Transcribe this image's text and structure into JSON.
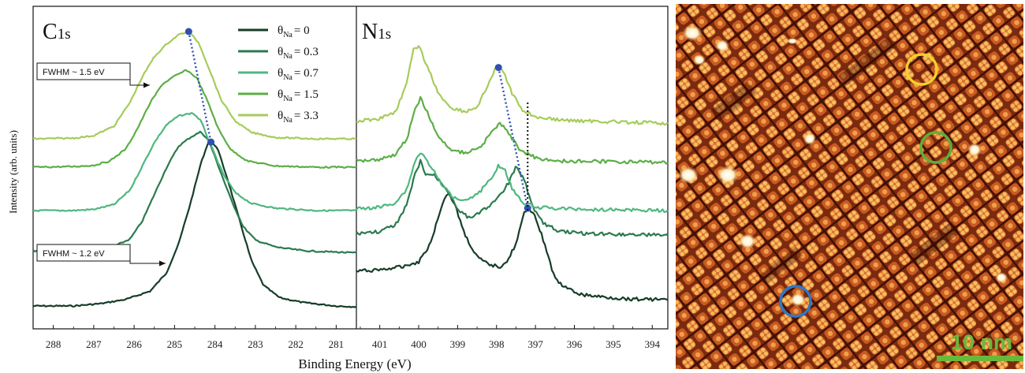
{
  "colors": {
    "series": [
      "#173d28",
      "#2c7a4e",
      "#4fb77f",
      "#5cae47",
      "#a6cc5a"
    ],
    "peak_marker": "#2f4fb3",
    "stm_circles": [
      "#f2d12a",
      "#5fae3c",
      "#2f78c4"
    ],
    "scale_bar": "#6ab83a"
  },
  "chart_data": [
    {
      "type": "line",
      "panel": "C1s",
      "title_main": "C",
      "title_sub": "1s",
      "xlabel": "Binding Energy (eV)",
      "ylabel": "Intensity (arb. units)",
      "x_reversed": true,
      "xlim": [
        288.5,
        280.5
      ],
      "x_ticks": [
        288,
        287,
        286,
        285,
        284,
        283,
        282,
        281
      ],
      "legend_symbol": "θ",
      "legend_sub": "Na",
      "series": [
        {
          "label": "= 0",
          "points": [
            [
              288.5,
              0.0
            ],
            [
              287.5,
              0.0
            ],
            [
              286.8,
              0.03
            ],
            [
              286.2,
              0.08
            ],
            [
              285.6,
              0.18
            ],
            [
              285.2,
              0.4
            ],
            [
              284.9,
              0.75
            ],
            [
              284.6,
              1.25
            ],
            [
              284.35,
              1.72
            ],
            [
              284.15,
              2.0
            ],
            [
              283.95,
              1.92
            ],
            [
              283.7,
              1.55
            ],
            [
              283.4,
              1.05
            ],
            [
              283.1,
              0.55
            ],
            [
              282.8,
              0.25
            ],
            [
              282.4,
              0.1
            ],
            [
              281.8,
              0.04
            ],
            [
              281.0,
              0.0
            ],
            [
              280.5,
              -0.01
            ]
          ]
        },
        {
          "label": "= 0.3",
          "points": [
            [
              288.5,
              0.0
            ],
            [
              287.6,
              0.0
            ],
            [
              287.0,
              0.02
            ],
            [
              286.5,
              0.08
            ],
            [
              286.1,
              0.22
            ],
            [
              285.8,
              0.55
            ],
            [
              285.5,
              1.05
            ],
            [
              285.2,
              1.55
            ],
            [
              284.9,
              1.95
            ],
            [
              284.6,
              2.12
            ],
            [
              284.35,
              2.22
            ],
            [
              284.15,
              2.05
            ],
            [
              283.9,
              1.55
            ],
            [
              283.6,
              0.95
            ],
            [
              283.3,
              0.45
            ],
            [
              283.0,
              0.2
            ],
            [
              282.5,
              0.07
            ],
            [
              281.8,
              0.0
            ],
            [
              280.5,
              -0.04
            ]
          ]
        },
        {
          "label": "= 0.7",
          "points": [
            [
              288.5,
              0.0
            ],
            [
              287.5,
              0.0
            ],
            [
              287.0,
              0.02
            ],
            [
              286.5,
              0.1
            ],
            [
              286.1,
              0.35
            ],
            [
              285.8,
              0.75
            ],
            [
              285.5,
              1.15
            ],
            [
              285.2,
              1.45
            ],
            [
              284.9,
              1.6
            ],
            [
              284.55,
              1.65
            ],
            [
              284.35,
              1.52
            ],
            [
              284.1,
              1.1
            ],
            [
              283.8,
              0.62
            ],
            [
              283.5,
              0.3
            ],
            [
              283.1,
              0.12
            ],
            [
              282.5,
              0.04
            ],
            [
              281.5,
              0.0
            ],
            [
              280.5,
              0.0
            ]
          ]
        },
        {
          "label": "= 1.5",
          "points": [
            [
              288.5,
              0.0
            ],
            [
              287.5,
              0.01
            ],
            [
              287.0,
              0.03
            ],
            [
              286.6,
              0.1
            ],
            [
              286.2,
              0.3
            ],
            [
              285.9,
              0.65
            ],
            [
              285.6,
              1.05
            ],
            [
              285.3,
              1.35
            ],
            [
              285.0,
              1.48
            ],
            [
              284.7,
              1.58
            ],
            [
              284.45,
              1.45
            ],
            [
              284.2,
              1.1
            ],
            [
              283.9,
              0.6
            ],
            [
              283.6,
              0.28
            ],
            [
              283.2,
              0.1
            ],
            [
              282.5,
              0.02
            ],
            [
              281.5,
              0.0
            ],
            [
              280.5,
              0.0
            ]
          ]
        },
        {
          "label": "= 3.3",
          "points": [
            [
              288.5,
              0.0
            ],
            [
              287.5,
              0.01
            ],
            [
              287.0,
              0.05
            ],
            [
              286.5,
              0.2
            ],
            [
              286.1,
              0.58
            ],
            [
              285.8,
              0.98
            ],
            [
              285.5,
              1.3
            ],
            [
              285.2,
              1.5
            ],
            [
              284.9,
              1.65
            ],
            [
              284.65,
              1.7
            ],
            [
              284.4,
              1.52
            ],
            [
              284.15,
              1.12
            ],
            [
              283.85,
              0.62
            ],
            [
              283.5,
              0.28
            ],
            [
              283.1,
              0.1
            ],
            [
              282.5,
              0.02
            ],
            [
              281.5,
              0.0
            ],
            [
              280.5,
              0.0
            ]
          ]
        }
      ],
      "peak_positions": [
        [
          284.65,
          4
        ],
        [
          284.1,
          0
        ]
      ],
      "annotations": [
        {
          "text": "FWHM ~ 1.5 eV",
          "series": 4
        },
        {
          "text": "FWHM ~ 1.2 eV",
          "series": 0
        }
      ]
    },
    {
      "type": "line",
      "panel": "N1s",
      "title_main": "N",
      "title_sub": "1s",
      "x_reversed": true,
      "xlim": [
        401.6,
        393.6
      ],
      "x_ticks": [
        401,
        400,
        399,
        398,
        397,
        396,
        395,
        394
      ],
      "series": [
        {
          "label": "= 0",
          "points": [
            [
              401.6,
              0.0
            ],
            [
              401.0,
              0.02
            ],
            [
              400.5,
              0.05
            ],
            [
              400.0,
              0.12
            ],
            [
              399.7,
              0.35
            ],
            [
              399.4,
              0.85
            ],
            [
              399.25,
              1.0
            ],
            [
              399.1,
              0.88
            ],
            [
              398.8,
              0.45
            ],
            [
              398.5,
              0.18
            ],
            [
              398.2,
              0.08
            ],
            [
              397.9,
              0.06
            ],
            [
              397.7,
              0.15
            ],
            [
              397.5,
              0.35
            ],
            [
              397.3,
              0.72
            ],
            [
              397.2,
              0.8
            ],
            [
              397.05,
              0.75
            ],
            [
              396.8,
              0.4
            ],
            [
              396.5,
              -0.1
            ],
            [
              396.2,
              -0.22
            ],
            [
              395.8,
              -0.3
            ],
            [
              395.2,
              -0.33
            ],
            [
              394.6,
              -0.35
            ],
            [
              393.6,
              -0.36
            ]
          ]
        },
        {
          "label": "= 0.3",
          "points": [
            [
              401.6,
              0.0
            ],
            [
              401.0,
              0.02
            ],
            [
              400.6,
              0.1
            ],
            [
              400.3,
              0.35
            ],
            [
              400.1,
              0.7
            ],
            [
              399.95,
              0.88
            ],
            [
              399.85,
              0.72
            ],
            [
              399.6,
              0.7
            ],
            [
              399.3,
              0.55
            ],
            [
              399.0,
              0.3
            ],
            [
              398.7,
              0.18
            ],
            [
              398.3,
              0.3
            ],
            [
              398.0,
              0.4
            ],
            [
              397.7,
              0.6
            ],
            [
              397.5,
              0.8
            ],
            [
              397.3,
              0.68
            ],
            [
              397.1,
              0.35
            ],
            [
              396.8,
              0.12
            ],
            [
              396.4,
              0.03
            ],
            [
              395.8,
              0.0
            ],
            [
              393.6,
              -0.02
            ]
          ]
        },
        {
          "label": "= 0.7",
          "points": [
            [
              401.6,
              0.0
            ],
            [
              401.0,
              0.02
            ],
            [
              400.6,
              0.08
            ],
            [
              400.3,
              0.25
            ],
            [
              400.1,
              0.6
            ],
            [
              399.95,
              0.72
            ],
            [
              399.7,
              0.55
            ],
            [
              399.4,
              0.3
            ],
            [
              399.1,
              0.15
            ],
            [
              398.8,
              0.12
            ],
            [
              398.5,
              0.18
            ],
            [
              398.2,
              0.35
            ],
            [
              397.95,
              0.55
            ],
            [
              397.8,
              0.52
            ],
            [
              397.6,
              0.25
            ],
            [
              397.3,
              0.08
            ],
            [
              396.9,
              0.02
            ],
            [
              396.2,
              0.0
            ],
            [
              393.6,
              -0.02
            ]
          ]
        },
        {
          "label": "= 1.5",
          "points": [
            [
              401.6,
              0.0
            ],
            [
              401.0,
              0.02
            ],
            [
              400.6,
              0.08
            ],
            [
              400.3,
              0.28
            ],
            [
              400.1,
              0.65
            ],
            [
              399.95,
              0.8
            ],
            [
              399.75,
              0.58
            ],
            [
              399.5,
              0.3
            ],
            [
              399.2,
              0.15
            ],
            [
              398.8,
              0.1
            ],
            [
              398.4,
              0.18
            ],
            [
              398.1,
              0.38
            ],
            [
              397.9,
              0.48
            ],
            [
              397.7,
              0.35
            ],
            [
              397.4,
              0.14
            ],
            [
              397.0,
              0.04
            ],
            [
              396.5,
              0.0
            ],
            [
              393.6,
              -0.02
            ]
          ]
        },
        {
          "label": "= 3.3",
          "points": [
            [
              401.6,
              0.0
            ],
            [
              401.0,
              0.03
            ],
            [
              400.6,
              0.1
            ],
            [
              400.3,
              0.4
            ],
            [
              400.15,
              0.75
            ],
            [
              400.0,
              0.8
            ],
            [
              399.8,
              0.6
            ],
            [
              399.5,
              0.3
            ],
            [
              399.2,
              0.15
            ],
            [
              398.8,
              0.1
            ],
            [
              398.5,
              0.15
            ],
            [
              398.2,
              0.4
            ],
            [
              398.0,
              0.58
            ],
            [
              397.85,
              0.55
            ],
            [
              397.6,
              0.3
            ],
            [
              397.3,
              0.1
            ],
            [
              396.9,
              0.04
            ],
            [
              396.3,
              0.01
            ],
            [
              393.6,
              -0.02
            ]
          ]
        }
      ],
      "peak_positions": [
        [
          397.95,
          4
        ],
        [
          397.2,
          0
        ]
      ],
      "reference_line_x": 397.2
    }
  ],
  "stm": {
    "scale_bar_label": "10 nm"
  }
}
